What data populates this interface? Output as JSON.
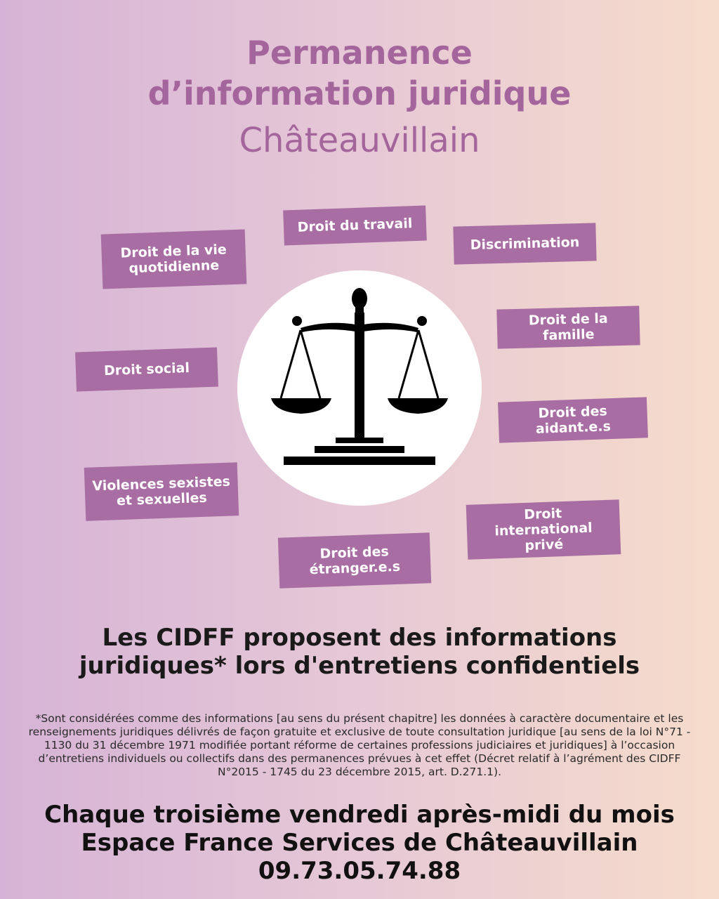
{
  "header": {
    "line1": "Permanence",
    "line2": "d’information juridique",
    "line3": "Châteauvillain"
  },
  "topics": [
    {
      "line1": "Droit de la vie",
      "line2": "quotidienne"
    },
    {
      "line1": "Droit du travail",
      "line2": ""
    },
    {
      "line1": "Discrimination",
      "line2": ""
    },
    {
      "line1": "Droit de la famille",
      "line2": ""
    },
    {
      "line1": "Droit social",
      "line2": ""
    },
    {
      "line1": "Droit des",
      "line2": "aidant.e.s"
    },
    {
      "line1": "Violences sexistes",
      "line2": "et sexuelles"
    },
    {
      "line1": "Droit international",
      "line2": "privé"
    },
    {
      "line1": "Droit des",
      "line2": "étranger.e.s"
    }
  ],
  "center_icon": "scales-of-justice-icon",
  "heading": {
    "line1": "Les CIDFF proposent des informations",
    "line2": "juridiques* lors d'entretiens confidentiels"
  },
  "footnote": "*Sont considérées comme des informations [au sens du présent chapitre] les données à caractère documentaire et les renseignements juridiques délivrés de façon gratuite et exclusive de toute consultation juridique [au sens de la loi N°71 - 1130 du 31 décembre 1971 modifiée portant réforme de certaines professions judiciaires et juridiques] à l’occasion d’entretiens individuels ou collectifs dans des permanences prévues à cet effet (Décret relatif à l’agrément des CIDFF N°2015 - 1745 du 23 décembre 2015, art. D.271.1).",
  "footer": {
    "schedule": "Chaque troisième vendredi après-midi du mois",
    "location": "Espace France Services de Châteauvillain",
    "phone": "09.73.05.74.88"
  },
  "colors": {
    "title": "#a4649c",
    "tag_bg": "#a86da2",
    "bg_left": "#d6b3d6",
    "bg_right": "#f6dccb"
  }
}
